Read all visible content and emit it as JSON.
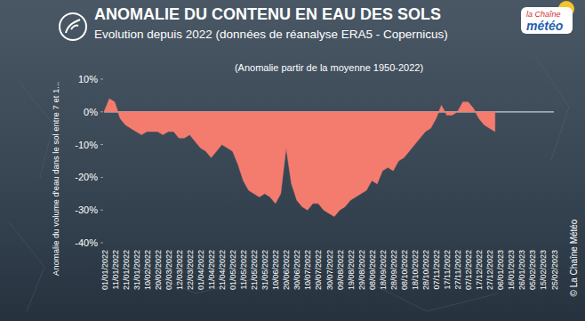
{
  "chart_data": {
    "type": "area",
    "title": "ANOMALIE DU CONTENU EN EAU DES SOLS",
    "subtitle": "Evolution depuis 2022 (données de réanalyse ERA5 - Copernicus)",
    "note": "(Anomalie  partir de la moyenne 1950-2022)",
    "y_label": "Anomalie du volume d'eau dans le sol entre 7 et 1...",
    "logo_text": [
      "la Chaîne",
      "météo"
    ],
    "credit": "© La Chaîne Météo",
    "color": "#f47c6f",
    "grid": false,
    "categories": [
      "01/01/2022",
      null,
      "11/01/2022",
      null,
      "21/01/2022",
      null,
      "31/01/2022",
      null,
      "10/02/2022",
      null,
      "20/02/2022",
      null,
      "02/03/2022",
      null,
      "12/03/2022",
      null,
      "22/03/2022",
      null,
      "01/04/2022",
      null,
      "11/04/2022",
      null,
      "21/04/2022",
      null,
      "01/05/2022",
      null,
      "11/05/2022",
      null,
      "21/05/2022",
      null,
      "31/05/2022",
      null,
      "10/06/2022",
      null,
      "20/06/2022",
      null,
      "30/06/2022",
      null,
      "10/07/2022",
      null,
      "20/07/2022",
      null,
      "30/07/2022",
      null,
      "09/08/2022",
      null,
      "19/08/2022",
      null,
      "29/08/2022",
      null,
      "08/09/2022",
      null,
      "18/09/2022",
      null,
      "28/09/2022",
      null,
      "08/10/2022",
      null,
      "18/10/2022",
      null,
      "28/10/2022",
      null,
      "07/11/2022",
      null,
      "17/11/2022",
      null,
      "27/11/2022",
      null,
      "07/12/2022",
      null,
      "17/12/2022",
      null,
      "27/12/2022",
      null,
      "06/01/2023",
      null,
      "16/01/2023",
      null,
      "26/01/2023",
      null,
      "05/02/2023",
      null,
      "15/02/2023",
      null,
      "25/02/2023"
    ],
    "values": [
      0,
      4,
      3,
      -2,
      -4,
      -5,
      -6,
      -7,
      -6,
      -6,
      -6,
      -7,
      -6,
      -6,
      -8,
      -8,
      -7,
      -9,
      -11,
      -12,
      -14,
      -12,
      -10,
      -11,
      -12,
      -16,
      -21,
      -24,
      -25,
      -26,
      -25,
      -26,
      -28,
      -25,
      -11,
      -22,
      -27,
      -29,
      -30,
      -28,
      -28,
      -30,
      -31,
      -32,
      -30,
      -29,
      -27,
      -26,
      -25,
      -24,
      -21,
      -22,
      -18,
      -17,
      -18,
      -15,
      -14,
      -12,
      -10,
      -8,
      -6,
      -5,
      -2,
      2,
      -1,
      -1,
      0,
      3,
      3,
      1,
      -2,
      -4,
      -5,
      -6,
      null,
      null,
      null,
      null,
      null,
      null,
      null,
      null,
      null,
      null,
      null
    ],
    "ylim": [
      -40,
      10
    ],
    "yticks": [
      {
        "value": -40,
        "label": "-40%"
      },
      {
        "value": -30,
        "label": "-30%"
      },
      {
        "value": -20,
        "label": "-20%"
      },
      {
        "value": -10,
        "label": "-10%"
      },
      {
        "value": 0,
        "label": "0%"
      },
      {
        "value": 10,
        "label": "10%"
      }
    ]
  }
}
